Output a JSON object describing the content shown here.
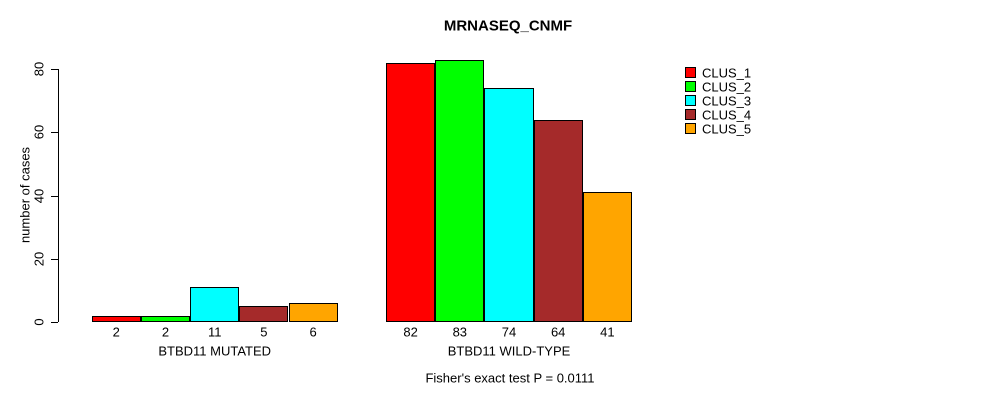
{
  "chart_data": {
    "type": "bar",
    "title": "MRNASEQ_CNMF",
    "ylabel": "number of cases",
    "xlabel": "",
    "ylim": [
      0,
      80
    ],
    "yticks": [
      0,
      20,
      40,
      60,
      80
    ],
    "grid": false,
    "legend_position": "top-right",
    "show_bar_value_labels": true,
    "categories": [
      "BTBD11 MUTATED",
      "BTBD11 WILD-TYPE"
    ],
    "series": [
      {
        "name": "CLUS_1",
        "color": "#FF0000",
        "values": [
          2,
          82
        ]
      },
      {
        "name": "CLUS_2",
        "color": "#00FF00",
        "values": [
          2,
          83
        ]
      },
      {
        "name": "CLUS_3",
        "color": "#00FFFF",
        "values": [
          11,
          74
        ]
      },
      {
        "name": "CLUS_4",
        "color": "#A52A2A",
        "values": [
          5,
          64
        ]
      },
      {
        "name": "CLUS_5",
        "color": "#FFA500",
        "values": [
          6,
          41
        ]
      }
    ],
    "annotation": "Fisher's exact test P = 0.0111",
    "text_color": "#000000",
    "background_color": "#FFFFFF"
  }
}
